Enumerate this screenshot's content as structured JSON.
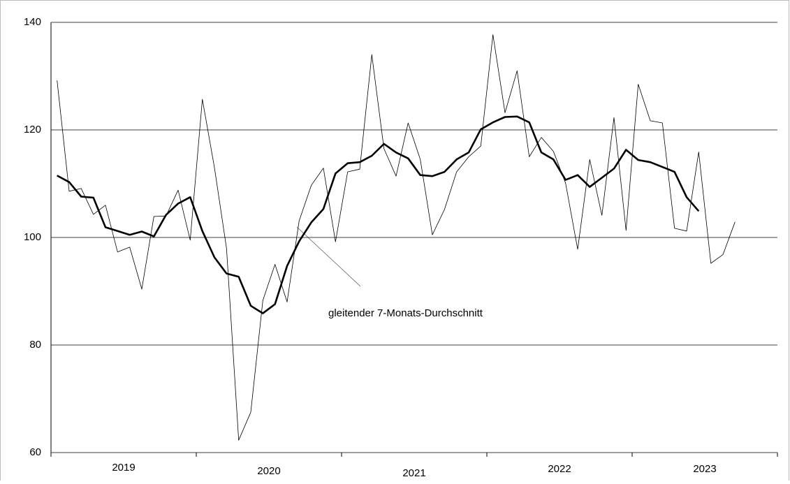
{
  "chart_data": {
    "type": "line",
    "annotation": "gleitender 7-Monats-Durchschnitt",
    "year_labels": [
      "2019",
      "2020",
      "2021",
      "2022",
      "2023"
    ],
    "series": [
      {
        "color": "#000000",
        "width": 0.8,
        "values": [
          129.2,
          108.6,
          109.1,
          104.3,
          106,
          97.3,
          98.2,
          90.4,
          103.9,
          104,
          108.8,
          99.5,
          125.7,
          113,
          98,
          62.3,
          67.5,
          88.3,
          95,
          88,
          103.1,
          109.7,
          112.9,
          99.2,
          112.2,
          112.7,
          134,
          116.5,
          111.4,
          121.3,
          114.5,
          100.5,
          105.2,
          112.2,
          115,
          117,
          137.7,
          123.2,
          131,
          115,
          118.6,
          116,
          110.1,
          97.8,
          114.5,
          104.1,
          122.3,
          101.3,
          128.5,
          121.7,
          121.3,
          101.7,
          101.2,
          115.9,
          95.2,
          96.8,
          102.9
        ]
      },
      {
        "color": "#000000",
        "width": 2.6,
        "values": [
          111.5,
          110.3,
          107.6,
          107.4,
          101.9,
          101.2,
          100.5,
          101.1,
          100.2,
          104.2,
          106.3,
          107.5,
          101.2,
          96.3,
          93.3,
          92.7,
          87.3,
          85.9,
          87.6,
          94.7,
          99.3,
          102.8,
          105.3,
          111.9,
          113.8,
          114,
          115.2,
          117.4,
          115.8,
          114.7,
          111.6,
          111.4,
          112.2,
          114.5,
          115.8,
          120.1,
          121.4,
          122.4,
          122.5,
          121.4,
          115.8,
          114.5,
          110.7,
          111.6,
          109.4,
          111.1,
          112.8,
          116.3,
          114.4,
          114,
          113.1,
          112.2,
          107.5,
          104.9,
          null,
          null,
          null
        ]
      }
    ],
    "ylim": [
      60,
      140
    ],
    "yticks": [
      60,
      80,
      100,
      120,
      140
    ],
    "grid": true
  }
}
